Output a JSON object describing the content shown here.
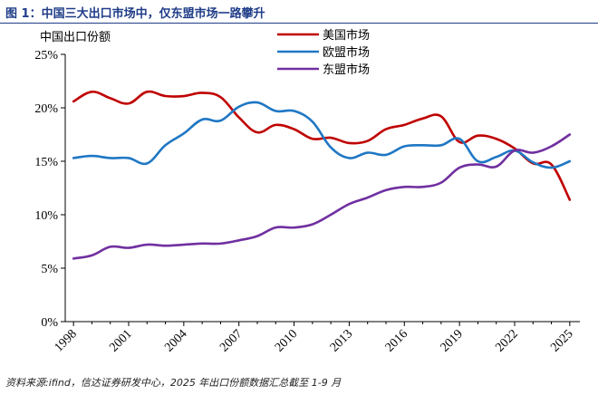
{
  "figure": {
    "title": "图 1：中国三大出口市场中，仅东盟市场一路攀升",
    "ylabel": "中国出口份额",
    "source": "资料来源:ifind，信达证券研发中心，2025 年出口份额数据汇总截至 1-9 月"
  },
  "chart_data": {
    "type": "line",
    "title": "图 1：中国三大出口市场中，仅东盟市场一路攀升",
    "xlabel": "",
    "ylabel": "中国出口份额",
    "xlim": [
      1998,
      2025
    ],
    "ylim": [
      0,
      25
    ],
    "x_ticks": [
      "1998",
      "2001",
      "2004",
      "2007",
      "2010",
      "2013",
      "2016",
      "2019",
      "2022",
      "2025"
    ],
    "y_ticks": [
      "0%",
      "5%",
      "10%",
      "15%",
      "20%",
      "25%"
    ],
    "legend_position": "top-right",
    "grid": false,
    "series": [
      {
        "name": "美国市场",
        "color": "#c00000",
        "x": [
          1998,
          1999,
          2000,
          2001,
          2002,
          2003,
          2004,
          2005,
          2006,
          2007,
          2008,
          2009,
          2010,
          2011,
          2012,
          2013,
          2014,
          2015,
          2016,
          2017,
          2018,
          2019,
          2020,
          2021,
          2022,
          2023,
          2024,
          2025
        ],
        "values": [
          20.6,
          21.5,
          20.9,
          20.4,
          21.5,
          21.1,
          21.1,
          21.4,
          21.0,
          19.1,
          17.7,
          18.4,
          18.0,
          17.1,
          17.2,
          16.7,
          16.9,
          18.0,
          18.4,
          19.0,
          19.2,
          16.8,
          17.4,
          17.1,
          16.2,
          14.8,
          14.7,
          11.4
        ]
      },
      {
        "name": "欧盟市场",
        "color": "#1f77c4",
        "x": [
          1998,
          1999,
          2000,
          2001,
          2002,
          2003,
          2004,
          2005,
          2006,
          2007,
          2008,
          2009,
          2010,
          2011,
          2012,
          2013,
          2014,
          2015,
          2016,
          2017,
          2018,
          2019,
          2020,
          2021,
          2022,
          2023,
          2024,
          2025
        ],
        "values": [
          15.3,
          15.5,
          15.3,
          15.3,
          14.8,
          16.5,
          17.6,
          18.9,
          18.8,
          20.1,
          20.5,
          19.7,
          19.7,
          18.7,
          16.3,
          15.3,
          15.8,
          15.6,
          16.4,
          16.5,
          16.5,
          17.1,
          15.0,
          15.4,
          16.0,
          14.9,
          14.4,
          15.0
        ]
      },
      {
        "name": "东盟市场",
        "color": "#7030a0",
        "x": [
          1998,
          1999,
          2000,
          2001,
          2002,
          2003,
          2004,
          2005,
          2006,
          2007,
          2008,
          2009,
          2010,
          2011,
          2012,
          2013,
          2014,
          2015,
          2016,
          2017,
          2018,
          2019,
          2020,
          2021,
          2022,
          2023,
          2024,
          2025
        ],
        "values": [
          5.9,
          6.2,
          7.0,
          6.9,
          7.2,
          7.1,
          7.2,
          7.3,
          7.3,
          7.6,
          8.0,
          8.8,
          8.8,
          9.1,
          10.0,
          11.0,
          11.6,
          12.3,
          12.6,
          12.6,
          13.0,
          14.4,
          14.7,
          14.5,
          16.0,
          15.8,
          16.4,
          17.5
        ]
      }
    ]
  }
}
